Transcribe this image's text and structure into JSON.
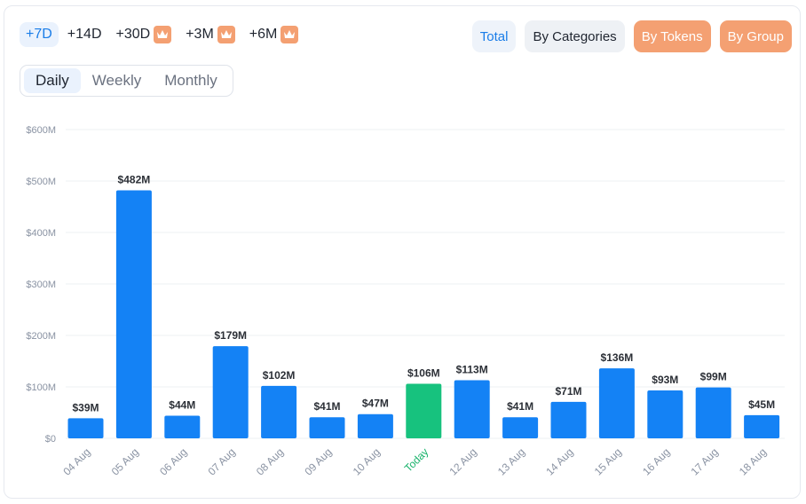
{
  "ranges": [
    {
      "label": "+7D",
      "active": true,
      "premium": false
    },
    {
      "label": "+14D",
      "active": false,
      "premium": false
    },
    {
      "label": "+30D",
      "active": false,
      "premium": true
    },
    {
      "label": "+3M",
      "active": false,
      "premium": true
    },
    {
      "label": "+6M",
      "active": false,
      "premium": true
    }
  ],
  "views": {
    "total": "Total",
    "categories": "By Categories",
    "tokens": "By Tokens",
    "group": "By Group"
  },
  "periods": {
    "daily": "Daily",
    "weekly": "Weekly",
    "monthly": "Monthly",
    "selected": "Daily"
  },
  "colors": {
    "bar": "#1482f5",
    "today_bar": "#17c27e",
    "today_label": "#17b26a",
    "accent_orange": "#f4a072",
    "accent_blue": "#1a7de8"
  },
  "chart_data": {
    "type": "bar",
    "categories": [
      "04 Aug",
      "05 Aug",
      "06 Aug",
      "07 Aug",
      "08 Aug",
      "09 Aug",
      "10 Aug",
      "Today",
      "12 Aug",
      "13 Aug",
      "14 Aug",
      "15 Aug",
      "16 Aug",
      "17 Aug",
      "18 Aug"
    ],
    "values": [
      39,
      482,
      44,
      179,
      102,
      41,
      47,
      106,
      113,
      41,
      71,
      136,
      93,
      99,
      45
    ],
    "value_labels": [
      "$39M",
      "$482M",
      "$44M",
      "$179M",
      "$102M",
      "$41M",
      "$47M",
      "$106M",
      "$113M",
      "$41M",
      "$71M",
      "$136M",
      "$93M",
      "$99M",
      "$45M"
    ],
    "highlight_category": "Today",
    "y_ticks": [
      0,
      100,
      200,
      300,
      400,
      500,
      600
    ],
    "y_tick_labels": [
      "$0",
      "$100M",
      "$200M",
      "$300M",
      "$400M",
      "$500M",
      "$600M"
    ],
    "ylim": [
      0,
      600
    ],
    "grid": true,
    "title": "",
    "xlabel": "",
    "ylabel": ""
  }
}
